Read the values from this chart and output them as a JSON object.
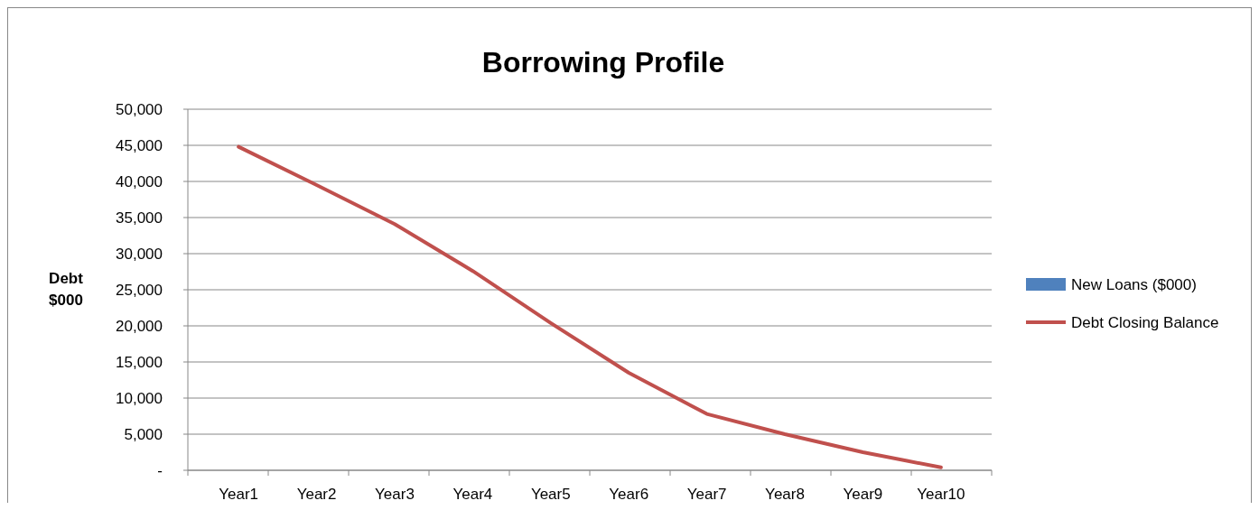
{
  "chart_data": {
    "type": "line",
    "title": "Borrowing Profile",
    "ylabel": "Debt $000",
    "categories": [
      "Year1",
      "Year2",
      "Year3",
      "Year4",
      "Year5",
      "Year6",
      "Year7",
      "Year8",
      "Year9",
      "Year10"
    ],
    "series": [
      {
        "name": "New Loans ($000)",
        "type": "bar",
        "color": "#4f81bd",
        "values": [
          0,
          0,
          0,
          0,
          0,
          0,
          0,
          0,
          0,
          0
        ]
      },
      {
        "name": "Debt Closing Balance",
        "color": "#c0504d",
        "values": [
          44800,
          39500,
          34100,
          27600,
          20400,
          13500,
          7800,
          5000,
          2500,
          400
        ]
      }
    ],
    "ylim": [
      0,
      50000
    ],
    "yticks": [
      {
        "value": 0,
        "label": "-"
      },
      {
        "value": 5000,
        "label": "5,000"
      },
      {
        "value": 10000,
        "label": "10,000"
      },
      {
        "value": 15000,
        "label": "15,000"
      },
      {
        "value": 20000,
        "label": "20,000"
      },
      {
        "value": 25000,
        "label": "25,000"
      },
      {
        "value": 30000,
        "label": "30,000"
      },
      {
        "value": 35000,
        "label": "35,000"
      },
      {
        "value": 40000,
        "label": "40,000"
      },
      {
        "value": 45000,
        "label": "45,000"
      },
      {
        "value": 50000,
        "label": "50,000"
      }
    ],
    "grid": "y",
    "legend": "right"
  }
}
